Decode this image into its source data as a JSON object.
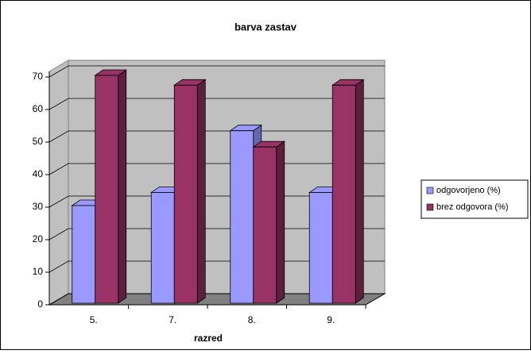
{
  "chart_data": {
    "type": "bar3d",
    "title": "barva zastav",
    "x_label": "razred",
    "categories": [
      "5.",
      "7.",
      "8.",
      "9."
    ],
    "series": [
      {
        "name": "odgovorjeno (%)",
        "color": "#9999ff",
        "side": "#6666b3",
        "values": [
          30,
          34,
          53,
          34
        ]
      },
      {
        "name": "brez odgovora (%)",
        "color": "#993366",
        "side": "#5c1f3d",
        "values": [
          70,
          67,
          48,
          67
        ]
      }
    ],
    "ylim": [
      0,
      70
    ],
    "yticks": [
      0,
      10,
      20,
      30,
      40,
      50,
      60,
      70
    ],
    "grid": true,
    "legend": "right"
  }
}
